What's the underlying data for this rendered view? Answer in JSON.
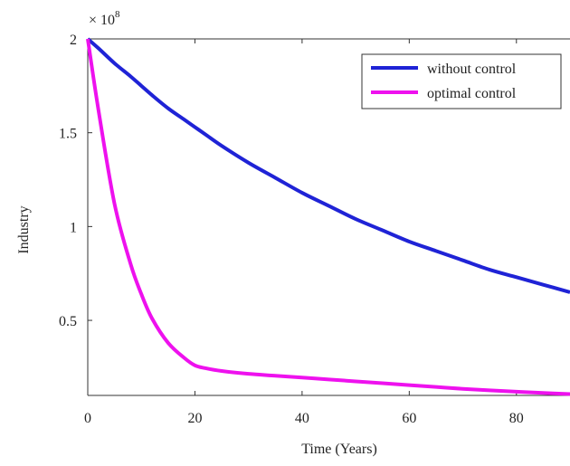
{
  "chart_data": {
    "type": "line",
    "title": "",
    "xlabel": "Time (Years)",
    "ylabel": "Industry",
    "y_multiplier": {
      "base": "× 10",
      "exponent": "8"
    },
    "xlim": [
      0,
      90
    ],
    "ylim": [
      0.1,
      2.0
    ],
    "x_ticks": [
      0,
      20,
      40,
      60,
      80
    ],
    "x_tick_labels": [
      "0",
      "20",
      "40",
      "60",
      "80"
    ],
    "y_ticks": [
      0.5,
      1,
      1.5,
      2
    ],
    "y_tick_labels": [
      "0.5",
      "1",
      "1.5",
      "2"
    ],
    "grid": false,
    "legend_position": "top-right",
    "x": [
      0,
      2,
      5,
      8,
      10,
      12,
      15,
      18,
      20,
      22,
      25,
      30,
      35,
      40,
      45,
      50,
      55,
      60,
      65,
      70,
      75,
      80,
      85,
      90
    ],
    "series": [
      {
        "name": "without control",
        "color": "#1f23d6",
        "values": [
          2.0,
          1.95,
          1.87,
          1.8,
          1.75,
          1.7,
          1.63,
          1.57,
          1.53,
          1.49,
          1.43,
          1.34,
          1.26,
          1.18,
          1.11,
          1.04,
          0.98,
          0.92,
          0.87,
          0.82,
          0.77,
          0.73,
          0.69,
          0.65
        ]
      },
      {
        "name": "optimal control",
        "color": "#ee11ee",
        "values": [
          2.0,
          1.62,
          1.12,
          0.8,
          0.64,
          0.51,
          0.38,
          0.3,
          0.26,
          0.245,
          0.23,
          0.215,
          0.205,
          0.195,
          0.185,
          0.175,
          0.165,
          0.155,
          0.145,
          0.135,
          0.127,
          0.12,
          0.113,
          0.107
        ]
      }
    ]
  }
}
